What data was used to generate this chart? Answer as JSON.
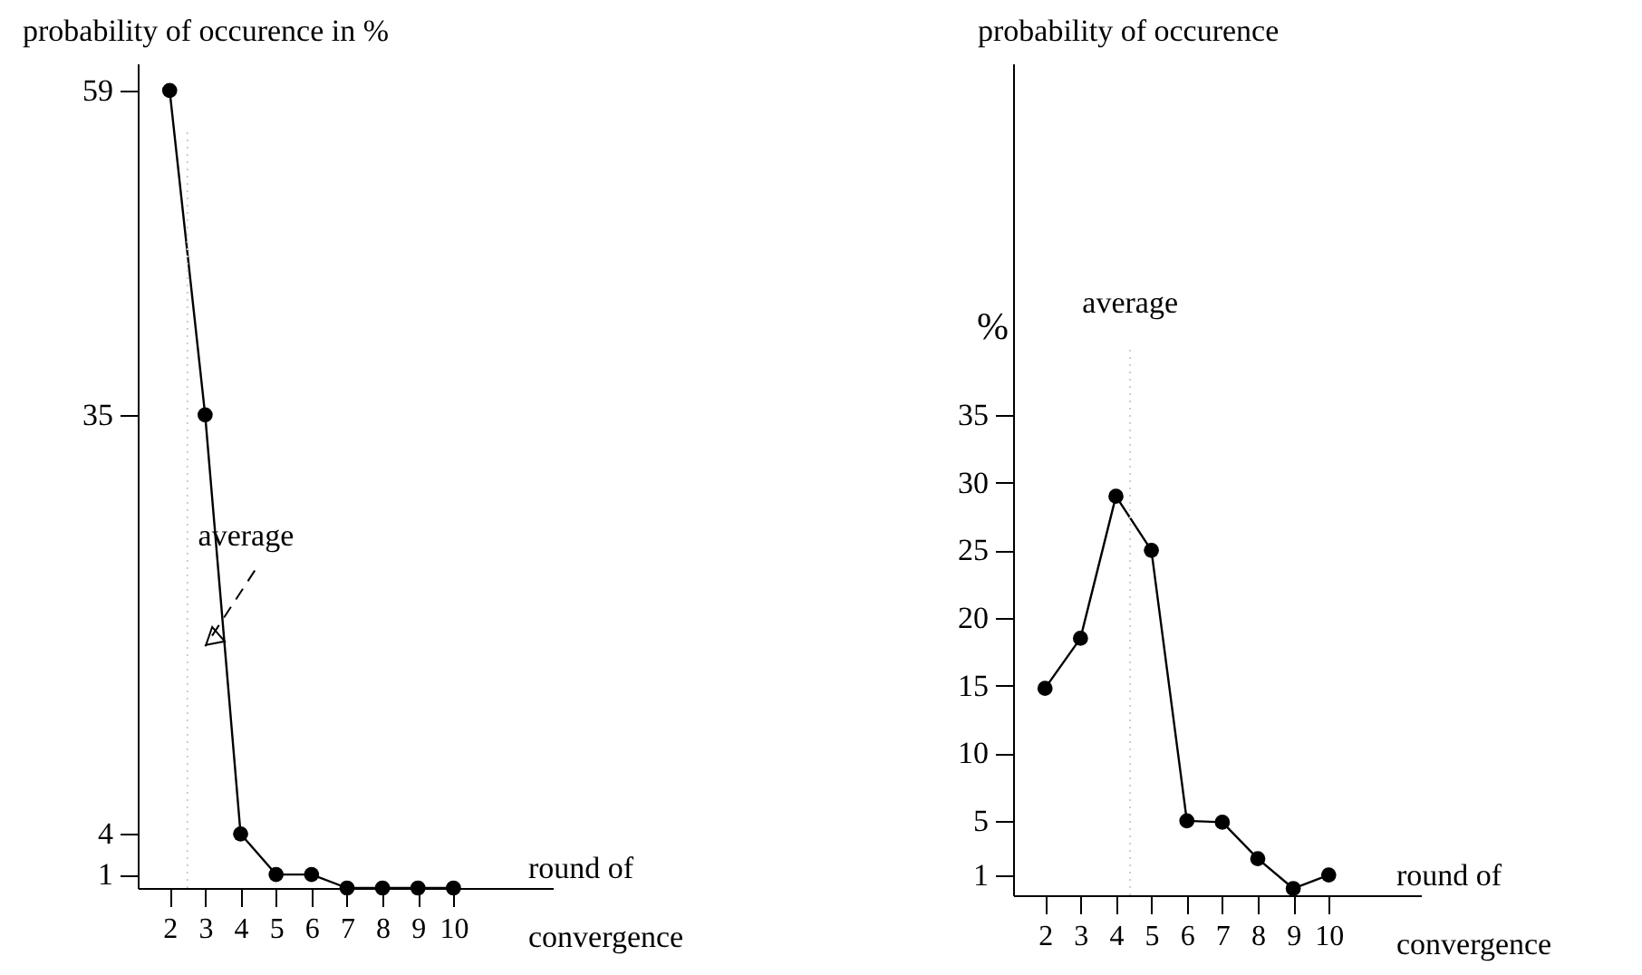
{
  "chart_data": [
    {
      "type": "line",
      "ylabel": "probability of occurence in %",
      "xlabel": "round of convergence",
      "x": [
        2,
        3,
        4,
        5,
        6,
        7,
        8,
        9,
        10
      ],
      "series": [
        {
          "color": "#000000",
          "values": [
            59,
            35,
            4,
            1,
            1,
            0,
            0,
            0,
            0
          ]
        }
      ],
      "xlim": [
        1.1,
        12.8
      ],
      "xticks": [
        2,
        3,
        4,
        5,
        6,
        7,
        8,
        9,
        10
      ],
      "ylim": [
        0,
        61
      ],
      "yticks": [
        1,
        4,
        35,
        59
      ],
      "marker": "circle",
      "line_style": "solid",
      "ref_lines": [
        {
          "axis": "x",
          "value": 2.5,
          "label": "average",
          "color": "#cccccc",
          "line_style": "dotted"
        }
      ]
    },
    {
      "type": "line",
      "ylabel": "probability of occurence",
      "xlabel": "round of convergence",
      "annotations": [
        "%"
      ],
      "x": [
        2,
        3,
        4,
        5,
        6,
        7,
        8,
        9,
        10
      ],
      "series": [
        {
          "color": "#000000",
          "values": [
            14.8,
            18.5,
            29,
            25,
            5,
            4.9,
            2.2,
            0,
            1
          ]
        }
      ],
      "xlim": [
        1.1,
        12.6
      ],
      "xticks": [
        2,
        3,
        4,
        5,
        6,
        7,
        8,
        9,
        10
      ],
      "ylim": [
        -0.5,
        61
      ],
      "yticks": [
        1,
        5,
        10,
        15,
        20,
        25,
        30,
        35
      ],
      "marker": "circle",
      "line_style": "solid",
      "ref_lines": [
        {
          "axis": "x",
          "value": 4.4,
          "label": "average",
          "color": "#cccccc",
          "line_style": "dotted"
        }
      ]
    }
  ]
}
